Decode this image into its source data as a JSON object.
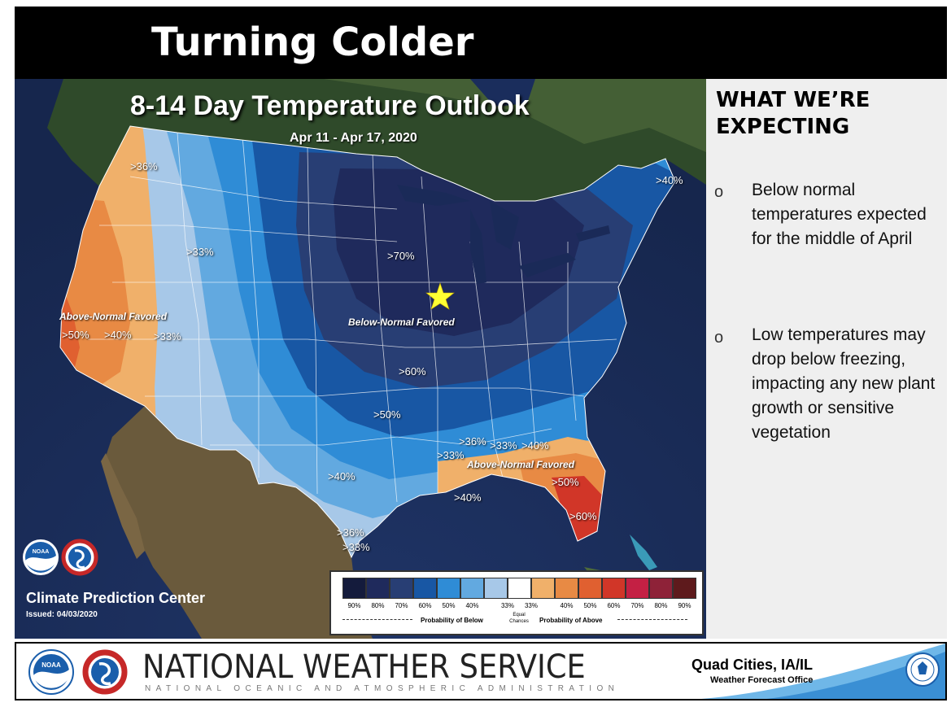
{
  "slide": {
    "title": "Turning Colder"
  },
  "map": {
    "title": "8-14 Day Temperature Outlook",
    "dates": "Apr 11 - Apr 17, 2020",
    "labels": {
      "l36": ">36%",
      "l33": ">33%",
      "l70": ">70%",
      "l60": ">60%",
      "l50": ">50%",
      "l40": ">40%",
      "l40ne": ">40%",
      "l36se": ">36%",
      "l33se": ">33%",
      "l36tx": ">36%",
      "l33tx": ">33%",
      "w50": ">50%",
      "w40": ">40%",
      "w33": ">33%",
      "s33": ">33%",
      "s40": ">40%",
      "s50": ">50%",
      "s60": ">60%",
      "s40gulf": ">40%"
    },
    "regions": {
      "above_west": "Above-Normal Favored",
      "below": "Below-Normal Favored",
      "above_southeast": "Above-Normal Favored"
    },
    "source": {
      "name": "Climate Prediction Center",
      "issued": "Issued: 04/03/2020"
    },
    "legend": {
      "below_ticks": [
        "90%",
        "80%",
        "70%",
        "60%",
        "50%",
        "40%",
        "33%"
      ],
      "above_ticks": [
        "33%",
        "40%",
        "50%",
        "60%",
        "70%",
        "80%",
        "90%"
      ],
      "below_caption": "Probability of Below",
      "above_caption": "Probability of Above",
      "equal": "Equal Chances",
      "below_colors": [
        "#141b3c",
        "#1f2a5c",
        "#283e74",
        "#1857a4",
        "#2f8cd6",
        "#62a9e0",
        "#a7c8e8"
      ],
      "equal_color": "#ffffff",
      "above_colors": [
        "#f0b06a",
        "#e88a44",
        "#e06030",
        "#d13628",
        "#c42044",
        "#8e2238",
        "#5e1a1c"
      ]
    }
  },
  "sidebar": {
    "heading_line1": "WHAT WE’RE",
    "heading_line2": "EXPECTING",
    "bullet_marker": "o",
    "bullets": [
      "Below normal temperatures expected for the middle of April",
      "Low temperatures may drop below freezing, impacting any new plant growth or sensitive vegetation"
    ]
  },
  "footer": {
    "agency": "NATIONAL WEATHER SERVICE",
    "parent": "NATIONAL OCEANIC AND ATMOSPHERIC ADMINISTRATION",
    "office": "Quad Cities, IA/IL",
    "office_sub": "Weather Forecast Office"
  }
}
